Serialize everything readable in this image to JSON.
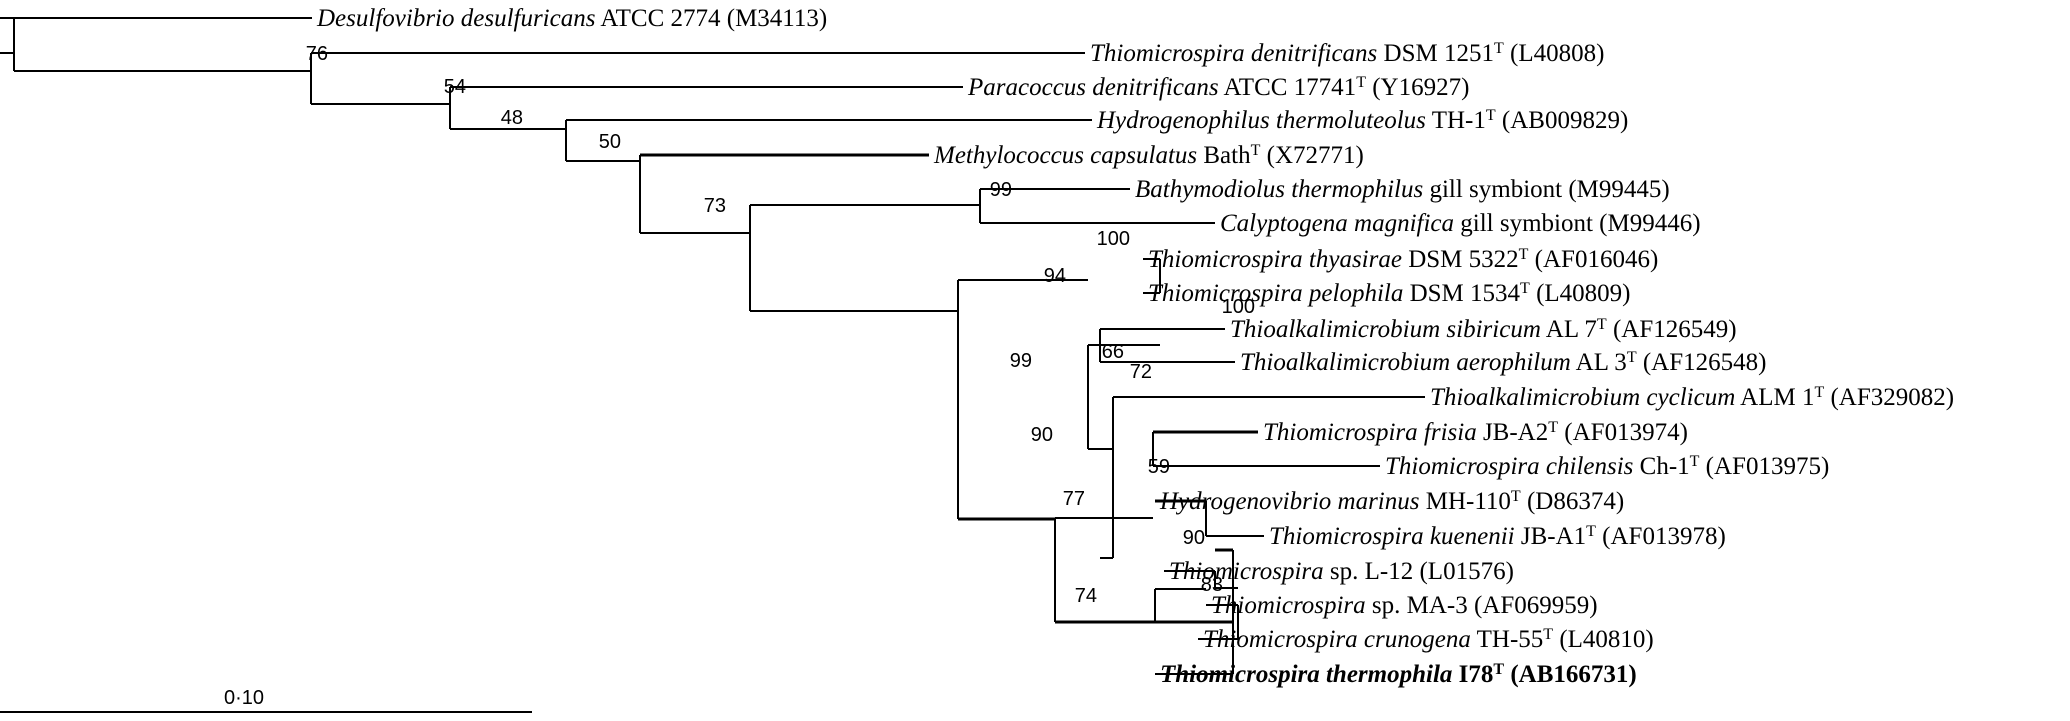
{
  "taxa": [
    {
      "genus_species": "Desulfovibrio desulfuricans",
      "strain": " ATCC 2774",
      "type_strain": false,
      "accession": " (M34113)",
      "bold": false
    },
    {
      "genus_species": "Thiomicrospira denitrificans",
      "strain": " DSM 1251",
      "type_strain": true,
      "accession": " (L40808)",
      "bold": false
    },
    {
      "genus_species": "Paracoccus denitrificans",
      "strain": " ATCC 17741",
      "type_strain": true,
      "accession": " (Y16927)",
      "bold": false
    },
    {
      "genus_species": "Hydrogenophilus thermoluteolus",
      "strain": " TH-1",
      "type_strain": true,
      "accession": " (AB009829)",
      "bold": false
    },
    {
      "genus_species": "Methylococcus capsulatus",
      "strain": " Bath",
      "type_strain": true,
      "accession": " (X72771)",
      "bold": false
    },
    {
      "genus_species": "Bathymodiolus thermophilus",
      "strain": " gill symbiont",
      "type_strain": false,
      "accession": " (M99445)",
      "bold": false
    },
    {
      "genus_species": "Calyptogena magnifica",
      "strain": " gill symbiont",
      "type_strain": false,
      "accession": " (M99446)",
      "bold": false
    },
    {
      "genus_species": "Thiomicrospira thyasirae",
      "strain": " DSM 5322",
      "type_strain": true,
      "accession": " (AF016046)",
      "bold": false
    },
    {
      "genus_species": "Thiomicrospira pelophila",
      "strain": " DSM 1534",
      "type_strain": true,
      "accession": " (L40809)",
      "bold": false
    },
    {
      "genus_species": "Thioalkalimicrobium sibiricum",
      "strain": " AL 7",
      "type_strain": true,
      "accession": " (AF126549)",
      "bold": false
    },
    {
      "genus_species": "Thioalkalimicrobium aerophilum",
      "strain": " AL 3",
      "type_strain": true,
      "accession": " (AF126548)",
      "bold": false
    },
    {
      "genus_species": "Thioalkalimicrobium  cyclicum",
      "strain": " ALM 1",
      "type_strain": true,
      "accession": " (AF329082)",
      "bold": false
    },
    {
      "genus_species": "Thiomicrospira frisia",
      "strain": " JB-A2",
      "type_strain": true,
      "accession": " (AF013974)",
      "bold": false
    },
    {
      "genus_species": "Thiomicrospira chilensis",
      "strain": " Ch-1",
      "type_strain": true,
      "accession": " (AF013975)",
      "bold": false
    },
    {
      "genus_species": "Hydrogenovibrio marinus",
      "strain": " MH-110",
      "type_strain": true,
      "accession": " (D86374)",
      "bold": false
    },
    {
      "genus_species": "Thiomicrospira kuenenii",
      "strain": " JB-A1",
      "type_strain": true,
      "accession": " (AF013978)",
      "bold": false
    },
    {
      "genus_species": "Thiomicrospira",
      "strain": " sp. L-12",
      "type_strain": false,
      "accession": " (L01576)",
      "bold": false
    },
    {
      "genus_species": "Thiomicrospira",
      "strain": " sp. MA-3",
      "type_strain": false,
      "accession": " (AF069959)",
      "bold": false
    },
    {
      "genus_species": "Thiomicrospira crunogena",
      "strain": " TH-55",
      "type_strain": true,
      "accession": " (L40810)",
      "bold": false
    },
    {
      "genus_species": "Thiomicrospira thermophila",
      "strain": " I78",
      "type_strain": true,
      "accession": " (AB166731)",
      "bold": true
    }
  ],
  "type_strain_mark": "T",
  "bootstrap": [
    "76",
    "54",
    "48",
    "50",
    "73",
    "99",
    "99",
    "94",
    "100",
    "72",
    "100",
    "90",
    "66",
    "77",
    "59",
    "74",
    "90",
    "83"
  ],
  "scale_bar": {
    "label": "0·10",
    "value": 0.1
  }
}
